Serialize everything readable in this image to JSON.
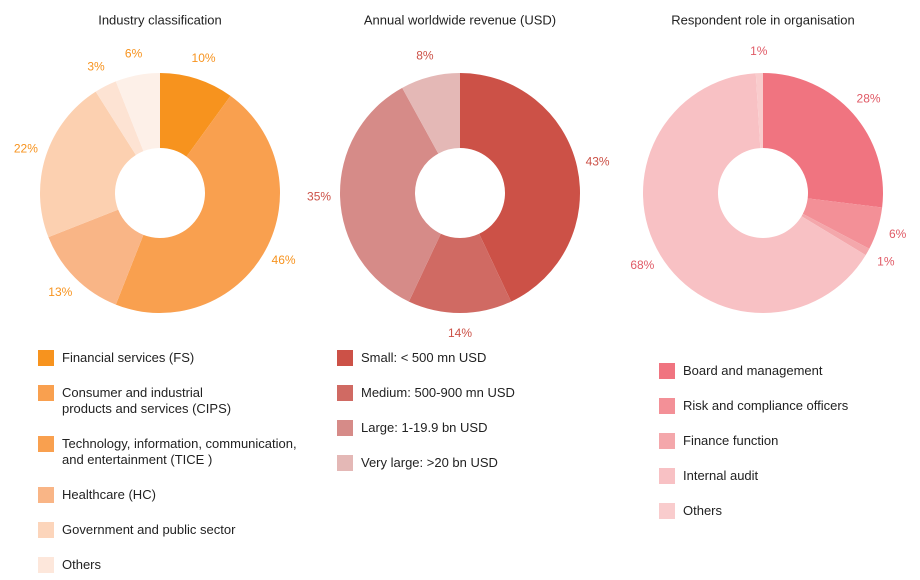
{
  "chart_data": [
    {
      "type": "pie",
      "title": "Industry classification",
      "categories": [
        "Financial services (FS)",
        "Consumer and industrial\nproducts and services (CIPS)",
        "Technology, information, communication,\nand entertainment (TICE )",
        "Healthcare (HC)",
        "Government and public sector",
        "Others"
      ],
      "values": [
        10,
        46,
        13,
        22,
        3,
        6
      ],
      "value_labels": [
        "10%",
        "46%",
        "13%",
        "22%",
        "3%",
        "6%"
      ],
      "colors": [
        "#f7931e",
        "#f9a04f",
        "#f9b586",
        "#fcd0b0",
        "#fde3d3",
        "#fdf0e8"
      ],
      "legend_colors": [
        "#f7931e",
        "#f9a04f",
        "#f9a04f",
        "#f9b586",
        "#fcd5bb",
        "#fde7db"
      ],
      "label_color": "#f7931e"
    },
    {
      "type": "pie",
      "title": "Annual worldwide revenue (USD)",
      "categories": [
        "Small: < 500 mn USD",
        "Medium: 500-900 mn USD",
        "Large: 1-19.9 bn USD",
        "Very large: >20 bn USD"
      ],
      "values": [
        43,
        14,
        35,
        8
      ],
      "value_labels": [
        "43%",
        "14%",
        "35%",
        "8%"
      ],
      "colors": [
        "#cc5147",
        "#d06a63",
        "#d68b88",
        "#e4b8b6"
      ],
      "legend_colors": [
        "#cc5147",
        "#d06a63",
        "#d68b88",
        "#e4b8b6"
      ],
      "label_color": "#cc5147"
    },
    {
      "type": "pie",
      "title": "Respondent role in organisation",
      "categories": [
        "Board and management",
        "Risk and compliance officers",
        "Finance function",
        "Internal audit",
        "Others"
      ],
      "values": [
        28,
        6,
        1,
        68,
        1
      ],
      "value_labels": [
        "28%",
        "6%",
        "1%",
        "68%",
        "1%"
      ],
      "colors": [
        "#f07480",
        "#f39097",
        "#f4a7ab",
        "#f8c1c4",
        "#f9cccd"
      ],
      "legend_colors": [
        "#f07480",
        "#f39097",
        "#f4a7ab",
        "#f8c1c4",
        "#f9cccd"
      ],
      "label_color": "#e05a66"
    }
  ]
}
